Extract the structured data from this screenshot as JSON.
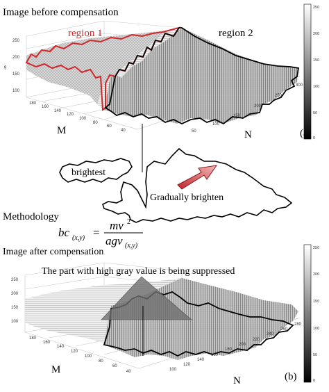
{
  "panel_top": {
    "title": "Image before compensation",
    "region1_label": "region 1",
    "region2_label": "region 2",
    "axis_m_label": "M",
    "axis_n_label": "N",
    "axis_g_label": "g",
    "panel_label": "(a)",
    "z_ticks": [
      "250",
      "200",
      "150",
      "100"
    ],
    "m_ticks": [
      "180",
      "160",
      "140",
      "120",
      "100",
      "80",
      "60",
      "40"
    ],
    "n_ticks": [
      "300",
      "250",
      "200",
      "150",
      "100",
      "50"
    ],
    "colorbar_ticks": [
      "250",
      "200",
      "150",
      "100",
      "50",
      "0"
    ]
  },
  "middle": {
    "brightest_label": "brightest",
    "brighten_label": "Gradually brighten",
    "methodology_label": "Methodology",
    "formula": {
      "lhs": "bc",
      "lhs_sub": "(x,y)",
      "equals": "=",
      "numerator": "mv",
      "numerator_sup": "2",
      "denominator": "agv",
      "denominator_sub": "(x,y)"
    }
  },
  "panel_bottom": {
    "title": "Image after compensation",
    "suppressed_label": "The part with high gray value is being suppressed",
    "axis_m_label": "M",
    "axis_n_label": "N",
    "panel_label": "(b)",
    "z_ticks": [
      "250",
      "200",
      "150",
      "100"
    ],
    "m_ticks": [
      "180",
      "160",
      "140",
      "120",
      "100",
      "80",
      "60",
      "40"
    ],
    "n_ticks": [
      "280",
      "260",
      "240",
      "220",
      "200",
      "180",
      "160",
      "140",
      "120",
      "100"
    ],
    "colorbar_ticks": [
      "250",
      "200",
      "150",
      "100",
      "50",
      "0"
    ]
  },
  "colors": {
    "region1_outline": "#d0262a",
    "arrow_fill": "#c0272d",
    "triangle_fill": "#6e6e6e",
    "outline": "#000000"
  }
}
